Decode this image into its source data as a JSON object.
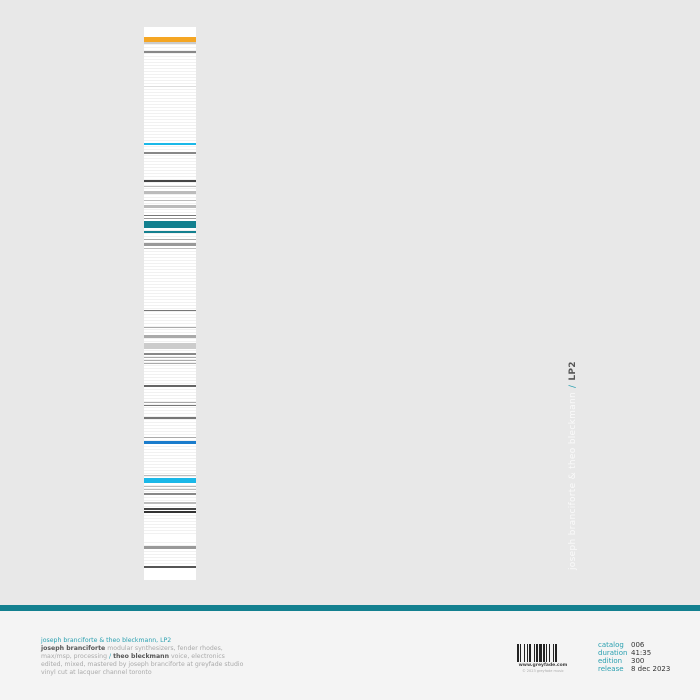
{
  "palette": {
    "background": "#e8e8e8",
    "teal": "#13808f",
    "orange": "#f5a623",
    "cyan": "#1ab8e8",
    "blue": "#1a7ccc"
  },
  "spine": {
    "artists": "joseph branciforte & theo bleckmann",
    "separator": "/",
    "title": "LP2"
  },
  "credits": {
    "line1": "joseph branciforte & theo bleckmann, LP2",
    "artist1": "joseph branciforte",
    "artist1_role": " modular synthesizers, fender rhodes,",
    "line3a": "max/msp, processing ",
    "slash": "/ ",
    "artist2": "theo bleckmann",
    "artist2_role": " voice, electronics",
    "line4": "edited, mixed, mastered by joseph branciforte at greyfade studio",
    "line5": "vinyl cut at lacquer channel toronto"
  },
  "barcode": {
    "url": "www.greyfade.com",
    "copyright": "© 2023 greyfade music"
  },
  "info": [
    {
      "label": "catalog",
      "value": "006"
    },
    {
      "label": "duration",
      "value": "41:35"
    },
    {
      "label": "edition",
      "value": "300"
    },
    {
      "label": "release",
      "value": "8 dec 2023"
    }
  ]
}
